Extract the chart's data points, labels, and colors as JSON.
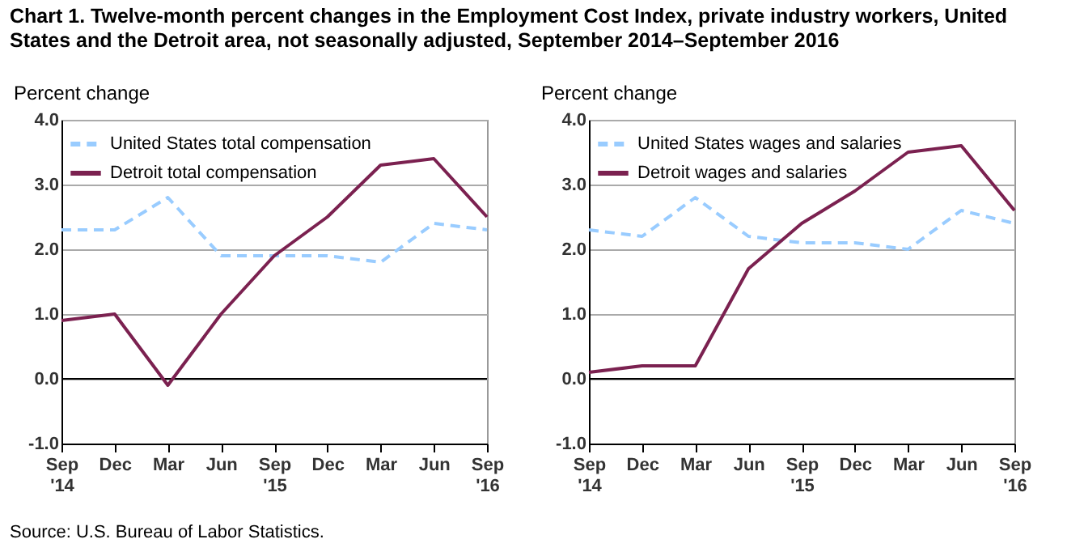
{
  "chart_data": [
    {
      "type": "line",
      "title": "Chart 1. Twelve-month percent changes in the Employment Cost Index, private industry workers, United States and the Detroit area, not seasonally adjusted, September 2014–September 2016",
      "ylabel": "Percent change",
      "annotations": [
        "Source: U.S. Bureau of Labor Statistics."
      ],
      "categories": [
        "Sep\n'14",
        "Dec",
        "Mar",
        "Jun",
        "Sep\n'15",
        "Dec",
        "Mar",
        "Jun",
        "Sep\n'16"
      ],
      "series": [
        {
          "name": "United States total compensation",
          "color": "#99ccff",
          "line_style": "dashed",
          "values": [
            2.3,
            2.3,
            2.8,
            1.9,
            1.9,
            1.9,
            1.8,
            2.4,
            2.3
          ]
        },
        {
          "name": "Detroit total compensation",
          "color": "#7b2150",
          "line_style": "solid",
          "values": [
            0.9,
            1.0,
            -0.1,
            1.0,
            1.9,
            2.5,
            3.3,
            3.4,
            2.5
          ]
        }
      ],
      "ylim": [
        -1,
        4
      ],
      "yticks": [
        {
          "value": -1,
          "label": "-1.0"
        },
        {
          "value": 0,
          "label": "0.0"
        },
        {
          "value": 1,
          "label": "1.0"
        },
        {
          "value": 2,
          "label": "2.0"
        },
        {
          "value": 3,
          "label": "3.0"
        },
        {
          "value": 4,
          "label": "4.0"
        }
      ],
      "ref_lines": [
        {
          "axis": "y",
          "value": 0,
          "color": "#000000"
        }
      ],
      "grid": "y",
      "legend": "top left"
    },
    {
      "type": "line",
      "ylabel": "Percent change",
      "categories": [
        "Sep\n'14",
        "Dec",
        "Mar",
        "Jun",
        "Sep\n'15",
        "Dec",
        "Mar",
        "Jun",
        "Sep\n'16"
      ],
      "series": [
        {
          "name": "United States wages and salaries",
          "color": "#99ccff",
          "line_style": "dashed",
          "values": [
            2.3,
            2.2,
            2.8,
            2.2,
            2.1,
            2.1,
            2.0,
            2.6,
            2.4
          ]
        },
        {
          "name": "Detroit wages and salaries",
          "color": "#7b2150",
          "line_style": "solid",
          "values": [
            0.1,
            0.2,
            0.2,
            1.7,
            2.4,
            2.9,
            3.5,
            3.6,
            2.6
          ]
        }
      ],
      "ylim": [
        -1,
        4
      ],
      "yticks": [
        {
          "value": -1,
          "label": "-1.0"
        },
        {
          "value": 0,
          "label": "0.0"
        },
        {
          "value": 1,
          "label": "1.0"
        },
        {
          "value": 2,
          "label": "2.0"
        },
        {
          "value": 3,
          "label": "3.0"
        },
        {
          "value": 4,
          "label": "4.0"
        }
      ],
      "ref_lines": [
        {
          "axis": "y",
          "value": 0,
          "color": "#000000"
        }
      ],
      "grid": "y",
      "legend": "top left"
    }
  ]
}
